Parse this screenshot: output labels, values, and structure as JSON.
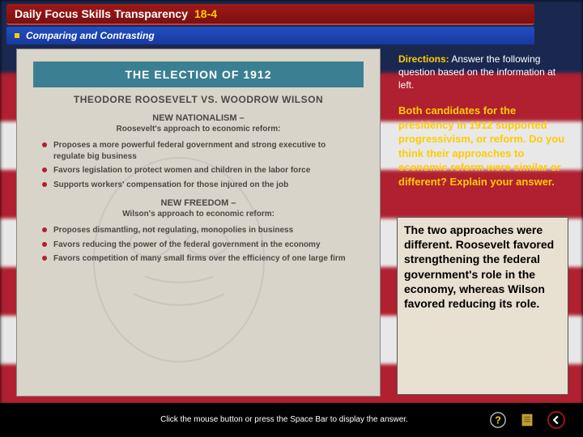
{
  "title_bar": {
    "text": "Daily Focus Skills Transparency",
    "number": "18-4"
  },
  "sub_bar": {
    "text": "Comparing and Contrasting"
  },
  "panel": {
    "header": "THE ELECTION OF 1912",
    "subtitle": "THEODORE ROOSEVELT VS. WOODROW WILSON",
    "sections": [
      {
        "title": "NEW NATIONALISM –",
        "desc": "Roosevelt's approach to economic reform:",
        "bullets": [
          "Proposes a more powerful federal government and strong executive to regulate big business",
          "Favors legislation to protect women and children in the labor force",
          "Supports workers' compensation for those injured on the job"
        ]
      },
      {
        "title": "NEW FREEDOM –",
        "desc": "Wilson's approach to economic reform:",
        "bullets": [
          "Proposes dismantling, not regulating, monopolies in business",
          "Favors reducing the power of the federal government in the economy",
          "Favors competition of many small firms over the efficiency of one large firm"
        ]
      }
    ]
  },
  "directions": {
    "label": "Directions:",
    "text": "Answer the following question based on the information at left."
  },
  "question": "Both candidates for the presidency in 1912 supported progressivism, or reform. Do you think their approaches to economic reform were similar or different? Explain your answer.",
  "answer": "The two approaches were different. Roosevelt favored strengthening the federal government's role in the economy, whereas Wilson favored reducing its role.",
  "instruction": "Click the mouse button or press the Space Bar to display the answer.",
  "colors": {
    "red_bar": "#a01818",
    "blue_bar": "#2050c0",
    "teal": "#3a8092",
    "gold": "#ffcc00",
    "panel_bg": "#d8d4ca",
    "answer_bg": "#e8e0d0"
  }
}
